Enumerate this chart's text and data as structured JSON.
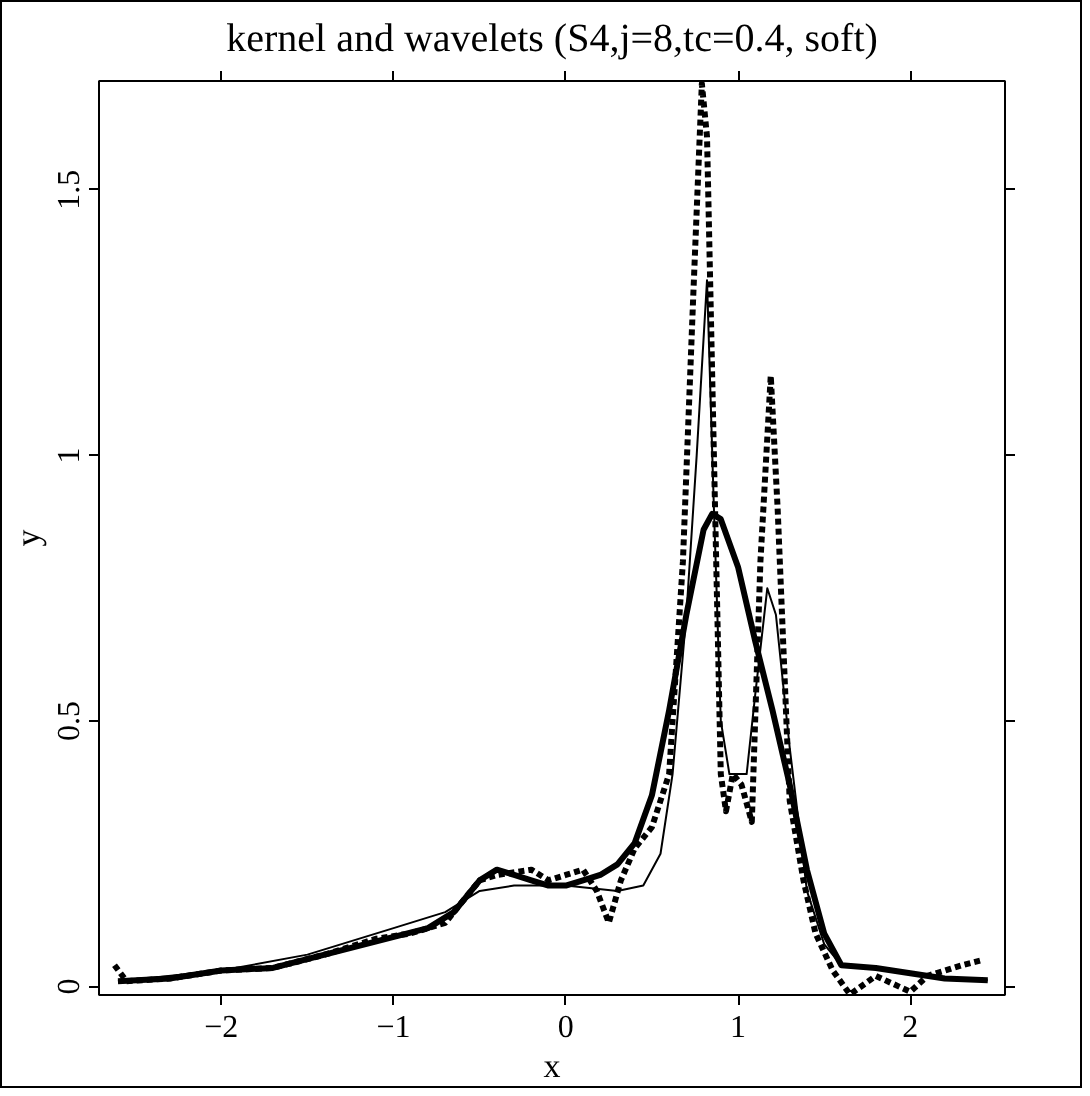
{
  "chart_data": {
    "type": "line",
    "title": "kernel and wavelets (S4,j=8,tc=0.4, soft)",
    "xlabel": "x",
    "ylabel": "y",
    "xlim": [
      -2.71,
      2.55
    ],
    "ylim": [
      -0.016,
      1.705
    ],
    "xticks": [
      -2,
      -1,
      0,
      1,
      2
    ],
    "yticks": [
      0,
      0.5,
      1,
      1.5
    ],
    "grid": false,
    "series": [
      {
        "color": "#000000",
        "line_style": "solid",
        "x": [
          -2.6,
          -2.3,
          -2.0,
          -1.7,
          -1.4,
          -1.1,
          -0.8,
          -0.65,
          -0.5,
          -0.4,
          -0.3,
          -0.2,
          -0.1,
          0,
          0.1,
          0.2,
          0.3,
          0.4,
          0.5,
          0.6,
          0.7,
          0.8,
          0.85,
          0.9,
          1.0,
          1.1,
          1.2,
          1.3,
          1.4,
          1.5,
          1.6,
          1.8,
          2.0,
          2.2,
          2.45
        ],
        "values": [
          0.01,
          0.015,
          0.03,
          0.035,
          0.06,
          0.085,
          0.11,
          0.14,
          0.2,
          0.22,
          0.21,
          0.2,
          0.19,
          0.19,
          0.2,
          0.21,
          0.23,
          0.27,
          0.36,
          0.52,
          0.7,
          0.86,
          0.89,
          0.88,
          0.79,
          0.65,
          0.52,
          0.38,
          0.22,
          0.1,
          0.04,
          0.035,
          0.025,
          0.015,
          0.012
        ]
      },
      {
        "color": "#000000",
        "line_style": "solid",
        "x": [
          -2.6,
          -2.0,
          -1.5,
          -1.0,
          -0.7,
          -0.5,
          -0.3,
          0,
          0.3,
          0.45,
          0.55,
          0.62,
          0.7,
          0.76,
          0.82,
          0.86,
          0.9,
          0.95,
          1.05,
          1.1,
          1.17,
          1.22,
          1.3,
          1.4,
          1.5,
          1.6,
          1.8,
          2.1,
          2.45
        ],
        "values": [
          0.01,
          0.03,
          0.06,
          0.11,
          0.14,
          0.18,
          0.19,
          0.19,
          0.18,
          0.19,
          0.25,
          0.4,
          0.7,
          1.0,
          1.33,
          0.9,
          0.5,
          0.4,
          0.4,
          0.55,
          0.75,
          0.7,
          0.45,
          0.18,
          0.08,
          0.04,
          0.035,
          0.02,
          0.012
        ]
      },
      {
        "color": "#000000",
        "line_style": "dotted",
        "x": [
          -2.62,
          -2.55,
          -2.3,
          -2.0,
          -1.7,
          -1.4,
          -1.1,
          -0.9,
          -0.7,
          -0.5,
          -0.4,
          -0.2,
          -0.1,
          0,
          0.1,
          0.18,
          0.25,
          0.32,
          0.4,
          0.5,
          0.6,
          0.68,
          0.74,
          0.79,
          0.82,
          0.86,
          0.9,
          0.93,
          0.97,
          1.02,
          1.08,
          1.13,
          1.19,
          1.23,
          1.3,
          1.38,
          1.45,
          1.55,
          1.65,
          1.8,
          2.0,
          2.1,
          2.3,
          2.42
        ],
        "values": [
          0.04,
          0.01,
          0.015,
          0.03,
          0.035,
          0.06,
          0.09,
          0.1,
          0.12,
          0.2,
          0.21,
          0.22,
          0.2,
          0.21,
          0.22,
          0.18,
          0.12,
          0.2,
          0.26,
          0.3,
          0.4,
          0.8,
          1.3,
          1.7,
          1.6,
          1.0,
          0.4,
          0.33,
          0.4,
          0.38,
          0.31,
          0.8,
          1.15,
          0.9,
          0.35,
          0.2,
          0.1,
          0.03,
          -0.015,
          0.02,
          -0.01,
          0.02,
          0.04,
          0.05
        ]
      }
    ]
  }
}
